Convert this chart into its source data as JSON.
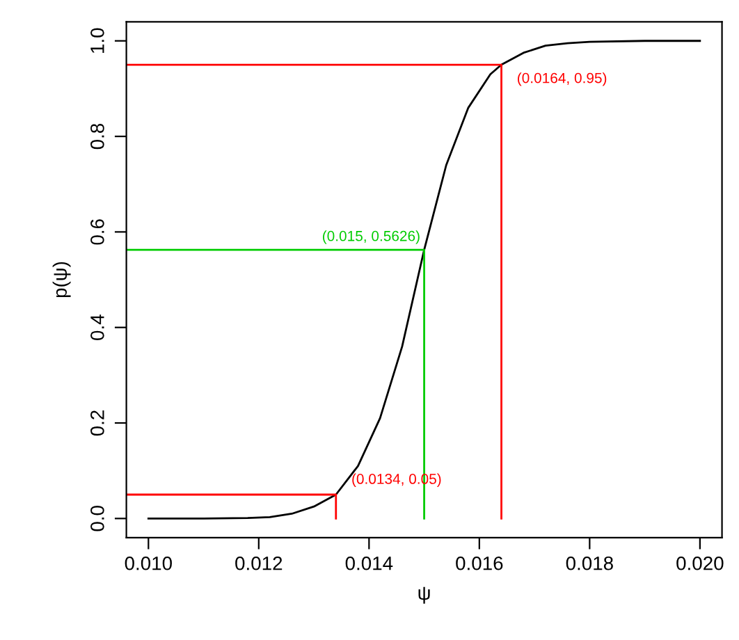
{
  "chart_data": {
    "type": "line",
    "xlabel": "ψ",
    "ylabel": "p(ψ)",
    "xlim": [
      0.0096,
      0.0204
    ],
    "ylim": [
      -0.04,
      1.04
    ],
    "xticks": [
      {
        "value": 0.01,
        "label": "0.010"
      },
      {
        "value": 0.012,
        "label": "0.012"
      },
      {
        "value": 0.014,
        "label": "0.014"
      },
      {
        "value": 0.016,
        "label": "0.016"
      },
      {
        "value": 0.018,
        "label": "0.018"
      },
      {
        "value": 0.02,
        "label": "0.020"
      }
    ],
    "yticks": [
      {
        "value": 0,
        "label": "0.0"
      },
      {
        "value": 0.2,
        "label": "0.2"
      },
      {
        "value": 0.4,
        "label": "0.4"
      },
      {
        "value": 0.6,
        "label": "0.6"
      },
      {
        "value": 0.8,
        "label": "0.8"
      },
      {
        "value": 1,
        "label": "1.0"
      }
    ],
    "grid": false,
    "legend": false,
    "marker": "none",
    "line_style": "solid",
    "series": [
      {
        "color": "#000000",
        "x": [
          0.01,
          0.011,
          0.0118,
          0.0122,
          0.0126,
          0.013,
          0.0134,
          0.0138,
          0.0142,
          0.0146,
          0.015,
          0.0154,
          0.0158,
          0.0162,
          0.0164,
          0.0168,
          0.0172,
          0.0176,
          0.018,
          0.019,
          0.02
        ],
        "values": [
          0,
          0,
          0.001,
          0.003,
          0.01,
          0.025,
          0.05,
          0.11,
          0.21,
          0.36,
          0.5626,
          0.74,
          0.86,
          0.93,
          0.95,
          0.975,
          0.99,
          0.995,
          0.998,
          1.0,
          1.0
        ]
      },
      {
        "color": "#ff0000",
        "x": [
          0.0096,
          0.0134,
          0.0134
        ],
        "values": [
          0.05,
          0.05,
          0
        ]
      },
      {
        "color": "#00cc00",
        "x": [
          0.0096,
          0.015,
          0.015
        ],
        "values": [
          0.5626,
          0.5626,
          0
        ]
      },
      {
        "color": "#ff0000",
        "x": [
          0.0096,
          0.0164,
          0.0164
        ],
        "values": [
          0.95,
          0.95,
          0
        ]
      }
    ],
    "annotations": [
      {
        "text": "(0.0134, 0.05)",
        "x": 0.0134,
        "y": 0.05
      },
      {
        "text": "(0.015, 0.5626)",
        "x": 0.015,
        "y": 0.5626
      },
      {
        "text": "(0.0164, 0.95)",
        "x": 0.0164,
        "y": 0.95
      }
    ]
  }
}
